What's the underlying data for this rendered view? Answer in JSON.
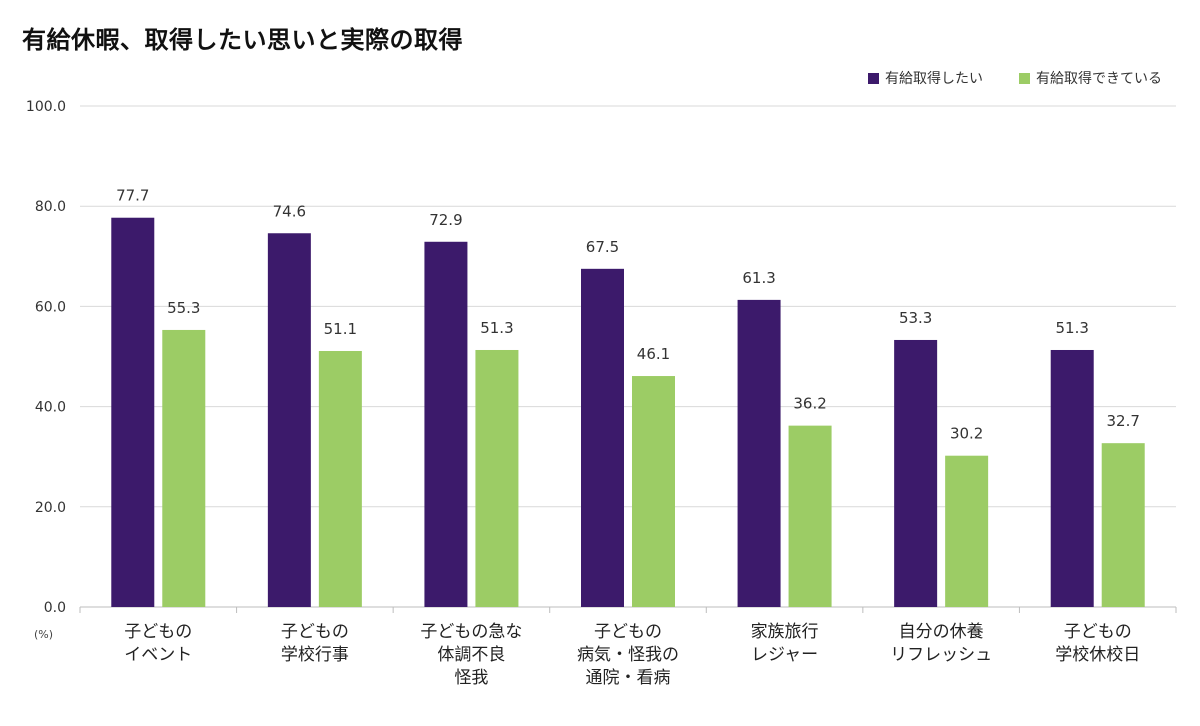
{
  "title": "有給休暇、取得したい思いと実際の取得",
  "unit_label": "(%)",
  "legend": [
    {
      "label": "有給取得したい",
      "color": "#3c1a6b"
    },
    {
      "label": "有給取得できている",
      "color": "#9ccc65"
    }
  ],
  "chart_data": {
    "type": "bar",
    "title": "有給休暇、取得したい思いと実際の取得",
    "ylabel": "(%)",
    "ylim": [
      0,
      100
    ],
    "yticks": [
      "0.0",
      "20.0",
      "40.0",
      "60.0",
      "80.0",
      "100.0"
    ],
    "grid": true,
    "legend_position": "top-right",
    "categories": [
      "子どもの\nイベント",
      "子どもの\n学校行事",
      "子どもの急な\n体調不良\n怪我",
      "子どもの\n病気・怪我の\n通院・看病",
      "家族旅行\nレジャー",
      "自分の休養\nリフレッシュ",
      "子どもの\n学校休校日"
    ],
    "series": [
      {
        "name": "有給取得したい",
        "color": "#3c1a6b",
        "values": [
          77.7,
          74.6,
          72.9,
          67.5,
          61.3,
          53.3,
          51.3
        ]
      },
      {
        "name": "有給取得できている",
        "color": "#9ccc65",
        "values": [
          55.3,
          51.1,
          51.3,
          46.1,
          36.2,
          30.2,
          32.7
        ]
      }
    ]
  }
}
